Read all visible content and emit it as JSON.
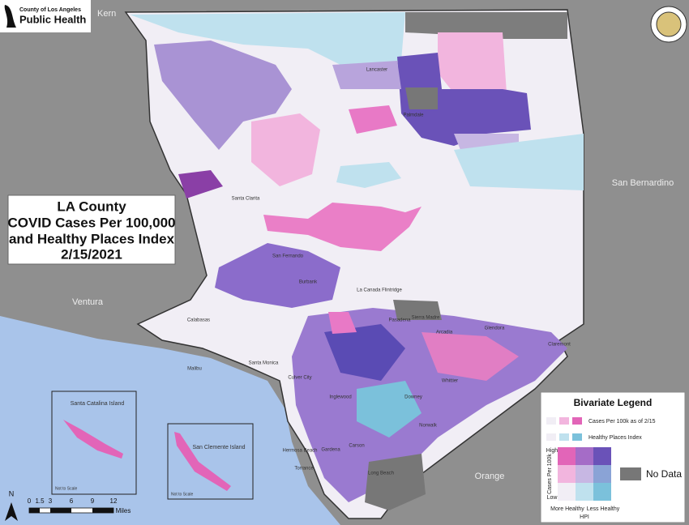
{
  "header": {
    "agency": "County of Los Angeles",
    "department": "Public Health"
  },
  "title": {
    "lines": [
      "LA County",
      "COVID Cases Per 100,000",
      "and Healthy Places Index",
      "2/15/2021"
    ]
  },
  "neighbors": {
    "north": "Kern",
    "east": "San Bernardino",
    "west": "Ventura",
    "south": "Orange"
  },
  "insets": [
    {
      "label": "Santa Catalina Island",
      "note": "Not to Scale"
    },
    {
      "label": "San Clemente Island",
      "note": "Not to Scale"
    }
  ],
  "cities": [
    "Lancaster",
    "Palmdale",
    "Santa Clarita",
    "San Fernando",
    "Burbank",
    "La Canada Flintridge",
    "Pasadena",
    "Sierra Madre",
    "Arcadia",
    "Glendora",
    "Claremont",
    "Calabasas",
    "Malibu",
    "Santa Monica",
    "Culver City",
    "Inglewood",
    "Downey",
    "Whittier",
    "Torrance",
    "Long Beach",
    "Hermosa Beach",
    "Carson",
    "Gardena",
    "Norwalk"
  ],
  "legend": {
    "title": "Bivariate Legend",
    "cases": "Cases Per 100k as of 2/15",
    "hpi": "Healthy Places Index",
    "high": "High",
    "low": "Low",
    "y_axis": "Cases Per 100k",
    "more_healthy": "More Healthy",
    "hpi_axis": "HPI",
    "less_healthy": "Less Healthy",
    "no_data": "No Data"
  },
  "scale_bar": {
    "ticks": [
      "0",
      "1.5",
      "3",
      "6",
      "9",
      "12"
    ],
    "unit": "Miles"
  },
  "north_arrow": "N"
}
